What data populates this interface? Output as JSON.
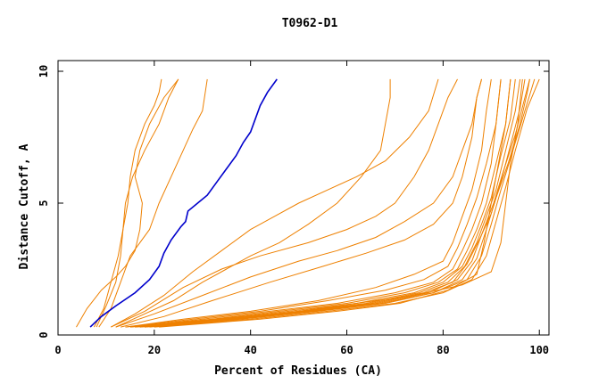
{
  "chart_data": {
    "type": "line",
    "title": "T0962-D1",
    "xlabel": "Percent of Residues (CA)",
    "ylabel": "Distance Cutoff, A",
    "xlim": [
      0,
      102
    ],
    "ylim": [
      0,
      10
    ],
    "x_ticks": [
      0,
      20,
      40,
      60,
      80,
      100
    ],
    "y_ticks": [
      0,
      5,
      10
    ],
    "grid": false,
    "colors": {
      "highlight": "#0000cc",
      "others": "#ee8000",
      "axis": "#000000"
    },
    "highlight_series": {
      "values": [
        [
          6.7,
          0.3
        ],
        [
          9,
          0.7
        ],
        [
          12,
          1.1
        ],
        [
          16,
          1.6
        ],
        [
          19,
          2.1
        ],
        [
          21,
          2.6
        ],
        [
          22,
          3.1
        ],
        [
          23.5,
          3.6
        ],
        [
          25.5,
          4.1
        ],
        [
          26.5,
          4.3
        ],
        [
          27,
          4.7
        ],
        [
          29,
          5
        ],
        [
          31,
          5.3
        ],
        [
          33,
          5.8
        ],
        [
          35,
          6.3
        ],
        [
          37,
          6.8
        ],
        [
          38.5,
          7.3
        ],
        [
          40,
          7.7
        ],
        [
          41,
          8.2
        ],
        [
          42,
          8.7
        ],
        [
          43.5,
          9.2
        ],
        [
          45.5,
          9.7
        ]
      ]
    },
    "series": [
      {
        "values": [
          [
            3.8,
            0.3
          ],
          [
            6,
            1
          ],
          [
            9,
            1.7
          ],
          [
            12,
            2.2
          ],
          [
            14,
            2.6
          ],
          [
            16,
            3.2
          ],
          [
            17,
            4
          ],
          [
            17.5,
            5
          ],
          [
            16,
            6
          ],
          [
            17,
            7
          ],
          [
            19,
            8
          ],
          [
            22,
            9
          ],
          [
            25,
            9.7
          ]
        ]
      },
      {
        "values": [
          [
            7.5,
            0.3
          ],
          [
            9.5,
            1
          ],
          [
            11,
            2
          ],
          [
            12.5,
            3
          ],
          [
            13.5,
            4
          ],
          [
            14.5,
            5
          ],
          [
            15,
            6
          ],
          [
            16,
            7
          ],
          [
            18,
            8
          ],
          [
            20,
            8.7
          ],
          [
            21,
            9.2
          ],
          [
            21.5,
            9.7
          ]
        ]
      },
      {
        "values": [
          [
            8,
            0.3
          ],
          [
            10,
            1.1
          ],
          [
            12,
            2
          ],
          [
            13,
            3
          ],
          [
            13.5,
            4
          ],
          [
            14,
            5
          ],
          [
            15.5,
            6
          ],
          [
            18,
            7
          ],
          [
            21,
            8
          ],
          [
            23,
            9
          ],
          [
            25,
            9.7
          ]
        ]
      },
      {
        "values": [
          [
            8.5,
            0.3
          ],
          [
            11,
            1
          ],
          [
            13,
            2
          ],
          [
            15,
            3
          ],
          [
            17,
            3.5
          ],
          [
            19,
            4
          ],
          [
            21,
            5
          ],
          [
            23.5,
            6
          ],
          [
            26,
            7
          ],
          [
            28,
            7.8
          ],
          [
            30,
            8.5
          ],
          [
            31,
            9.7
          ]
        ]
      },
      {
        "values": [
          [
            12,
            0.3
          ],
          [
            18,
            0.8
          ],
          [
            24,
            1.3
          ],
          [
            30,
            2
          ],
          [
            35,
            2.5
          ],
          [
            40,
            3
          ],
          [
            46,
            3.5
          ],
          [
            52,
            4.2
          ],
          [
            58,
            5
          ],
          [
            63,
            6
          ],
          [
            67,
            7
          ],
          [
            68,
            8
          ],
          [
            69,
            9
          ],
          [
            69,
            9.7
          ]
        ]
      },
      {
        "values": [
          [
            11,
            0.3
          ],
          [
            16,
            0.8
          ],
          [
            22,
            1.5
          ],
          [
            28,
            2.4
          ],
          [
            34,
            3.2
          ],
          [
            40,
            4
          ],
          [
            45,
            4.5
          ],
          [
            50,
            5
          ],
          [
            56,
            5.5
          ],
          [
            62,
            6
          ],
          [
            68,
            6.6
          ],
          [
            73,
            7.5
          ],
          [
            77,
            8.5
          ],
          [
            79,
            9.7
          ]
        ]
      },
      {
        "values": [
          [
            11,
            0.3
          ],
          [
            18,
            0.9
          ],
          [
            26,
            1.8
          ],
          [
            34,
            2.5
          ],
          [
            42,
            3
          ],
          [
            52,
            3.5
          ],
          [
            60,
            4
          ],
          [
            66,
            4.5
          ],
          [
            70,
            5
          ],
          [
            74,
            6
          ],
          [
            77,
            7
          ],
          [
            79,
            8
          ],
          [
            81,
            9
          ],
          [
            83,
            9.7
          ]
        ]
      },
      {
        "values": [
          [
            12,
            0.3
          ],
          [
            20,
            0.8
          ],
          [
            30,
            1.5
          ],
          [
            40,
            2.2
          ],
          [
            50,
            2.8
          ],
          [
            58,
            3.2
          ],
          [
            66,
            3.7
          ],
          [
            72,
            4.3
          ],
          [
            78,
            5
          ],
          [
            82,
            6
          ],
          [
            84,
            7
          ],
          [
            86,
            8
          ],
          [
            87,
            9
          ],
          [
            88,
            9.7
          ]
        ]
      },
      {
        "values": [
          [
            13,
            0.3
          ],
          [
            22,
            0.7
          ],
          [
            32,
            1.3
          ],
          [
            44,
            2
          ],
          [
            55,
            2.6
          ],
          [
            64,
            3.1
          ],
          [
            72,
            3.6
          ],
          [
            78,
            4.2
          ],
          [
            82,
            5
          ],
          [
            84,
            6
          ],
          [
            86,
            7.5
          ],
          [
            87,
            9
          ],
          [
            88,
            9.7
          ]
        ]
      },
      {
        "values": [
          [
            14,
            0.3
          ],
          [
            26,
            0.6
          ],
          [
            40,
            0.9
          ],
          [
            54,
            1.3
          ],
          [
            66,
            1.8
          ],
          [
            74,
            2.3
          ],
          [
            80,
            2.8
          ],
          [
            82,
            3.5
          ],
          [
            84,
            4.5
          ],
          [
            86,
            5.5
          ],
          [
            88,
            7
          ],
          [
            89,
            8.5
          ],
          [
            90,
            9.7
          ]
        ]
      },
      {
        "values": [
          [
            14,
            0.3
          ],
          [
            28,
            0.6
          ],
          [
            42,
            0.9
          ],
          [
            56,
            1.3
          ],
          [
            68,
            1.7
          ],
          [
            76,
            2.1
          ],
          [
            81,
            2.6
          ],
          [
            83,
            3.3
          ],
          [
            85,
            4.2
          ],
          [
            87,
            5.2
          ],
          [
            89,
            6.5
          ],
          [
            91,
            8
          ],
          [
            92,
            9.7
          ]
        ]
      },
      {
        "values": [
          [
            15,
            0.3
          ],
          [
            30,
            0.6
          ],
          [
            44,
            0.9
          ],
          [
            58,
            1.2
          ],
          [
            70,
            1.6
          ],
          [
            78,
            2
          ],
          [
            82,
            2.5
          ],
          [
            84,
            3.2
          ],
          [
            86,
            4
          ],
          [
            88,
            5
          ],
          [
            90,
            6.5
          ],
          [
            91,
            8
          ],
          [
            92,
            9.7
          ]
        ]
      },
      {
        "values": [
          [
            15,
            0.3
          ],
          [
            32,
            0.6
          ],
          [
            46,
            0.9
          ],
          [
            60,
            1.2
          ],
          [
            72,
            1.6
          ],
          [
            79,
            2
          ],
          [
            83,
            2.5
          ],
          [
            85,
            3.2
          ],
          [
            87,
            4
          ],
          [
            89,
            5
          ],
          [
            91,
            6.5
          ],
          [
            93,
            8
          ],
          [
            94,
            9.7
          ]
        ]
      },
      {
        "values": [
          [
            16,
            0.3
          ],
          [
            33,
            0.6
          ],
          [
            48,
            0.9
          ],
          [
            62,
            1.2
          ],
          [
            74,
            1.6
          ],
          [
            80,
            2
          ],
          [
            84,
            2.6
          ],
          [
            86,
            3.3
          ],
          [
            88,
            4.2
          ],
          [
            90,
            5.2
          ],
          [
            92,
            6.8
          ],
          [
            94,
            8.2
          ],
          [
            95,
            9.7
          ]
        ]
      },
      {
        "values": [
          [
            16,
            0.3
          ],
          [
            34,
            0.6
          ],
          [
            50,
            0.9
          ],
          [
            64,
            1.2
          ],
          [
            75,
            1.6
          ],
          [
            81,
            2
          ],
          [
            84.5,
            2.6
          ],
          [
            87,
            3.5
          ],
          [
            89,
            4.5
          ],
          [
            91,
            5.5
          ],
          [
            93,
            7
          ],
          [
            95,
            8.5
          ],
          [
            96,
            9.7
          ]
        ]
      },
      {
        "values": [
          [
            17,
            0.3
          ],
          [
            35,
            0.6
          ],
          [
            51,
            0.9
          ],
          [
            65,
            1.2
          ],
          [
            76,
            1.6
          ],
          [
            82,
            2
          ],
          [
            85,
            2.7
          ],
          [
            87.5,
            3.6
          ],
          [
            90,
            4.6
          ],
          [
            92,
            5.8
          ],
          [
            94,
            7.2
          ],
          [
            96,
            8.6
          ],
          [
            97,
            9.7
          ]
        ]
      },
      {
        "values": [
          [
            17,
            0.3
          ],
          [
            36,
            0.6
          ],
          [
            52,
            0.9
          ],
          [
            66,
            1.2
          ],
          [
            77,
            1.6
          ],
          [
            83,
            2.1
          ],
          [
            86,
            2.8
          ],
          [
            88,
            3.8
          ],
          [
            90.5,
            5
          ],
          [
            92.5,
            6.2
          ],
          [
            95,
            7.6
          ],
          [
            97,
            9
          ],
          [
            98,
            9.7
          ]
        ]
      },
      {
        "values": [
          [
            18,
            0.3
          ],
          [
            37,
            0.6
          ],
          [
            53,
            0.9
          ],
          [
            67,
            1.2
          ],
          [
            78,
            1.6
          ],
          [
            84,
            2.1
          ],
          [
            87,
            2.9
          ],
          [
            89,
            4
          ],
          [
            91,
            5.2
          ],
          [
            93.5,
            6.5
          ],
          [
            96,
            8
          ],
          [
            97.5,
            9.2
          ],
          [
            98,
            9.7
          ]
        ]
      },
      {
        "values": [
          [
            19,
            0.3
          ],
          [
            38,
            0.6
          ],
          [
            54,
            0.9
          ],
          [
            68,
            1.2
          ],
          [
            78,
            1.6
          ],
          [
            85,
            2.1
          ],
          [
            88,
            3
          ],
          [
            90,
            4.2
          ],
          [
            92,
            5.5
          ],
          [
            94.5,
            7
          ],
          [
            97,
            8.5
          ],
          [
            99,
            9.7
          ]
        ]
      },
      {
        "values": [
          [
            20,
            0.3
          ],
          [
            40,
            0.6
          ],
          [
            56,
            0.9
          ],
          [
            70,
            1.2
          ],
          [
            80,
            1.6
          ],
          [
            86,
            2.1
          ],
          [
            89,
            3
          ],
          [
            91,
            4.3
          ],
          [
            93,
            5.6
          ],
          [
            95,
            7
          ],
          [
            97.5,
            8.6
          ],
          [
            100,
            9.7
          ]
        ]
      },
      {
        "values": [
          [
            18,
            0.3
          ],
          [
            36,
            0.6
          ],
          [
            50,
            0.9
          ],
          [
            62,
            1.2
          ],
          [
            74,
            1.5
          ],
          [
            84,
            1.9
          ],
          [
            90,
            2.4
          ],
          [
            92,
            3.5
          ],
          [
            93,
            5
          ],
          [
            94,
            6.5
          ],
          [
            95.5,
            8
          ],
          [
            96.5,
            9.7
          ]
        ]
      },
      {
        "values": [
          [
            21,
            0.3
          ],
          [
            42,
            0.6
          ],
          [
            58,
            0.9
          ],
          [
            71,
            1.2
          ],
          [
            81,
            1.7
          ],
          [
            87,
            2.3
          ],
          [
            88.5,
            3.5
          ],
          [
            90,
            5
          ],
          [
            91.5,
            6.5
          ],
          [
            93,
            8
          ],
          [
            94,
            9.7
          ]
        ]
      }
    ]
  }
}
